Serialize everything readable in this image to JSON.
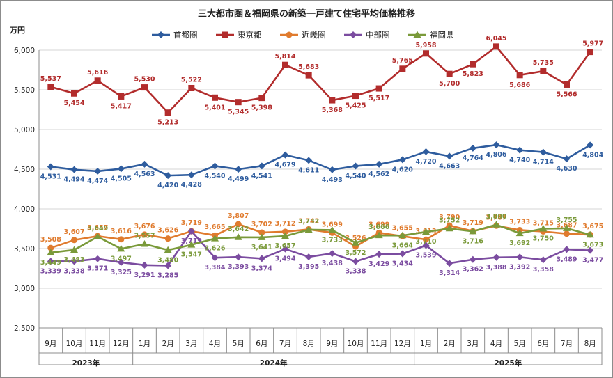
{
  "chart_data": {
    "type": "line",
    "title": "三大都市圏＆福岡県の新築一戸建て住宅平均価格推移",
    "ylabel": "万円",
    "ylim": [
      2500,
      6000
    ],
    "yticks": [
      "2,500",
      "3,000",
      "3,500",
      "4,000",
      "4,500",
      "5,000",
      "5,500",
      "6,000"
    ],
    "grid": "horizontal",
    "legend": "top",
    "categories": [
      "9月",
      "10月",
      "11月",
      "12月",
      "1月",
      "2月",
      "3月",
      "4月",
      "5月",
      "6月",
      "7月",
      "8月",
      "9月",
      "10月",
      "11月",
      "12月",
      "1月",
      "2月",
      "3月",
      "4月",
      "5月",
      "6月",
      "7月",
      "8月"
    ],
    "years": [
      {
        "label": "2023年",
        "start": 0,
        "end": 3
      },
      {
        "label": "2024年",
        "start": 4,
        "end": 15
      },
      {
        "label": "2025年",
        "start": 16,
        "end": 23
      }
    ],
    "series": [
      {
        "name": "首都圏",
        "color": "#2E5C9E",
        "marker": "diamond",
        "label_pos": "below",
        "values": [
          4531,
          4494,
          4474,
          4505,
          4563,
          4420,
          4428,
          4540,
          4499,
          4541,
          4679,
          4611,
          4493,
          4540,
          4562,
          4620,
          4720,
          4663,
          4764,
          4806,
          4740,
          4714,
          4630,
          4804
        ],
        "labels": [
          "4,531",
          "4,494",
          "4,474",
          "4,505",
          "4,563",
          "4,420",
          "4,428",
          "4,540",
          "4,499",
          "4,541",
          "4,679",
          "4,611",
          "4,493",
          "4,540",
          "4,562",
          "4,620",
          "4,720",
          "4,663",
          "4,764",
          "4,806",
          "4,740",
          "4,714",
          "4,630",
          "4,804"
        ]
      },
      {
        "name": "東京都",
        "color": "#B22C2C",
        "marker": "square",
        "label_pos": "mixed",
        "values": [
          5537,
          5454,
          5616,
          5417,
          5530,
          5213,
          5522,
          5401,
          5345,
          5398,
          5814,
          5683,
          5368,
          5425,
          5517,
          5765,
          5958,
          5700,
          5823,
          6045,
          5686,
          5735,
          5566,
          5977
        ],
        "labels": [
          "5,537",
          "5,454",
          "5,616",
          "5,417",
          "5,530",
          "5,213",
          "5,522",
          "5,401",
          "5,345",
          "5,398",
          "5,814",
          "5,683",
          "5,368",
          "5,425",
          "5,517",
          "5,765",
          "5,958",
          "5,700",
          "5,823",
          "6,045",
          "5,686",
          "5,735",
          "5,566",
          "5,977"
        ]
      },
      {
        "name": "近畿圏",
        "color": "#E07B2E",
        "marker": "circle",
        "label_pos": "above",
        "values": [
          3508,
          3607,
          3657,
          3616,
          3676,
          3626,
          3719,
          3665,
          3807,
          3702,
          3712,
          3742,
          3699,
          3526,
          3699,
          3655,
          3613,
          3790,
          3719,
          3787,
          3733,
          3715,
          3687,
          3675
        ],
        "labels": [
          "3,508",
          "3,607",
          "3,657",
          "3,616",
          "3,676",
          "3,626",
          "3,719",
          "3,665",
          "3,807",
          "3,702",
          "3,712",
          "3,742",
          "3,699",
          "3,526",
          "3,699",
          "3,655",
          "3,613",
          "3,790",
          "3,719",
          "3,787",
          "3,733",
          "3,715",
          "3,687",
          "3,675"
        ]
      },
      {
        "name": "中部圏",
        "color": "#7B4CA0",
        "marker": "diamond",
        "label_pos": "below",
        "values": [
          3339,
          3338,
          3371,
          3325,
          3291,
          3285,
          3719,
          3384,
          3393,
          3374,
          3494,
          3395,
          3438,
          3338,
          3429,
          3434,
          3539,
          3314,
          3362,
          3388,
          3392,
          3358,
          3489,
          3477
        ],
        "labels": [
          "3,339",
          "3,338",
          "3,371",
          "3,325",
          "3,291",
          "3,285",
          "3,719",
          "3,384",
          "3,393",
          "3,374",
          "3,494",
          "3,395",
          "3,438",
          "3,338",
          "3,429",
          "3,434",
          "3,539",
          "3,314",
          "3,362",
          "3,388",
          "3,392",
          "3,358",
          "3,489",
          "3,477"
        ]
      },
      {
        "name": "福岡県",
        "color": "#7A9A3A",
        "marker": "triangle",
        "label_pos": "mixed",
        "values": [
          3449,
          3483,
          3649,
          3497,
          3557,
          3480,
          3547,
          3626,
          3642,
          3641,
          3657,
          3737,
          3733,
          3572,
          3666,
          3664,
          3710,
          3752,
          3716,
          3800,
          3692,
          3750,
          3755,
          3673
        ],
        "labels": [
          "3,449",
          "3,483",
          "3,649",
          "3,497",
          "3,557",
          "3,480",
          "3,547",
          "3,626",
          "3,642",
          "3,641",
          "3,657",
          "3,737",
          "3,733",
          "3,572",
          "3,666",
          "3,664",
          "3,710",
          "3,752",
          "3,716",
          "3,800",
          "3,692",
          "3,750",
          "3,755",
          "3,673"
        ]
      }
    ]
  }
}
